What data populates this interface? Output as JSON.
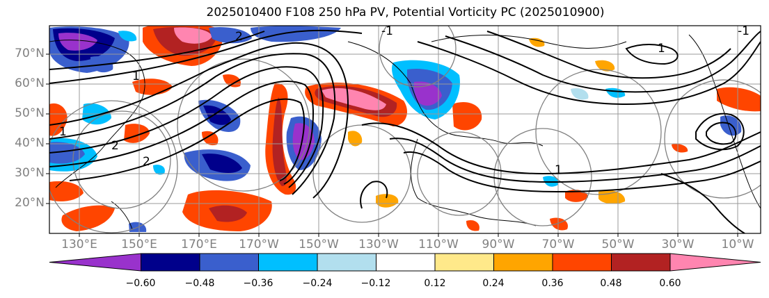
{
  "title": "2025010400 F108 250 hPa PV, Potential Vorticity PC (2025010900)",
  "lat_labels": [
    "70°N",
    "60°N",
    "50°N",
    "40°N",
    "30°N",
    "20°N"
  ],
  "lon_labels": [
    "130°E",
    "150°E",
    "170°E",
    "170°W",
    "150°W",
    "130°W",
    "110°W",
    "90°W",
    "70°W",
    "50°W",
    "30°W",
    "10°W"
  ],
  "colorbar": {
    "colors": [
      "#9932cc",
      "#00008b",
      "#3a5fcd",
      "#00bfff",
      "#b2dfee",
      "#ffffff",
      "#ffe98a",
      "#ffa500",
      "#ff4500",
      "#b22222",
      "#ff85b0"
    ],
    "labels": [
      "−0.60",
      "−0.48",
      "−0.36",
      "−0.24",
      "−0.12",
      "0.12",
      "0.24",
      "0.36",
      "0.48",
      "0.60"
    ]
  },
  "contour_labels": [
    "1",
    "1",
    "1",
    "1",
    "-1",
    "-1",
    "2",
    "2",
    "2"
  ]
}
